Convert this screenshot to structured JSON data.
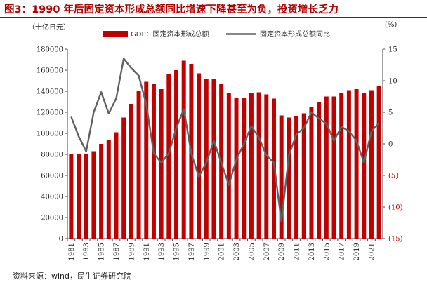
{
  "title": "图3：1990 年后固定资本形成总额同比增速下降甚至为负，投资增长乏力",
  "source": "资料来源：wind，民生证券研究院",
  "colors": {
    "bar": "#c00000",
    "line": "#606060",
    "title": "#b00000",
    "negative": "#c00000"
  },
  "chart_data": {
    "type": "bar+line",
    "left_unit": "（十亿日元）",
    "right_unit": "(%)",
    "y_left": {
      "min": 0,
      "max": 180000,
      "step": 20000,
      "ticks": [
        "0",
        "20000",
        "40000",
        "60000",
        "80000",
        "100000",
        "120000",
        "140000",
        "160000",
        "180000"
      ]
    },
    "y_right": {
      "min": -15,
      "max": 15,
      "step": 5,
      "ticks": [
        {
          "value": 15,
          "label": "15"
        },
        {
          "value": 10,
          "label": "10"
        },
        {
          "value": 5,
          "label": "5"
        },
        {
          "value": 0,
          "label": "0"
        },
        {
          "value": -5,
          "label": "(5)"
        },
        {
          "value": -10,
          "label": "(10)"
        },
        {
          "value": -15,
          "label": "(15)"
        }
      ]
    },
    "x_ticks": [
      "1981",
      "1983",
      "1985",
      "1987",
      "1989",
      "1991",
      "1993",
      "1995",
      "1997",
      "1999",
      "2001",
      "2003",
      "2005",
      "2007",
      "2009",
      "2011",
      "2013",
      "2015",
      "2017",
      "2019",
      "2021"
    ],
    "years": [
      1981,
      1982,
      1983,
      1984,
      1985,
      1986,
      1987,
      1988,
      1989,
      1990,
      1991,
      1992,
      1993,
      1994,
      1995,
      1996,
      1997,
      1998,
      1999,
      2000,
      2001,
      2002,
      2003,
      2004,
      2005,
      2006,
      2007,
      2008,
      2009,
      2010,
      2011,
      2012,
      2013,
      2014,
      2015,
      2016,
      2017,
      2018,
      2019,
      2020,
      2021,
      2022
    ],
    "series": [
      {
        "name": "GDP：固定资本形成总额",
        "axis": "left",
        "kind": "bar",
        "values": [
          80000,
          80500,
          80000,
          83000,
          90000,
          94000,
          101000,
          115000,
          128000,
          140000,
          149000,
          147000,
          142000,
          156000,
          160000,
          169000,
          166000,
          157000,
          152000,
          152000,
          147000,
          138000,
          134000,
          134000,
          138000,
          139000,
          137000,
          133000,
          117000,
          115000,
          116000,
          119000,
          125000,
          130000,
          135000,
          135000,
          138000,
          141000,
          142000,
          138000,
          141000,
          145000
        ]
      },
      {
        "name": "固定资本形成总额同比",
        "axis": "right",
        "kind": "line",
        "values": [
          4.3,
          1.2,
          -1.2,
          5.0,
          8.2,
          4.8,
          7.2,
          13.5,
          12.0,
          10.8,
          6.3,
          -1.5,
          -3.0,
          -1.5,
          2.5,
          5.5,
          -1.5,
          -5.2,
          -3.0,
          0.5,
          -3.0,
          -6.5,
          -2.5,
          0.0,
          2.8,
          1.0,
          -1.8,
          -3.0,
          -12.3,
          -1.8,
          1.5,
          2.5,
          5.0,
          4.0,
          3.2,
          0.5,
          2.7,
          2.0,
          0.5,
          -3.0,
          2.0,
          3.3
        ]
      }
    ]
  }
}
